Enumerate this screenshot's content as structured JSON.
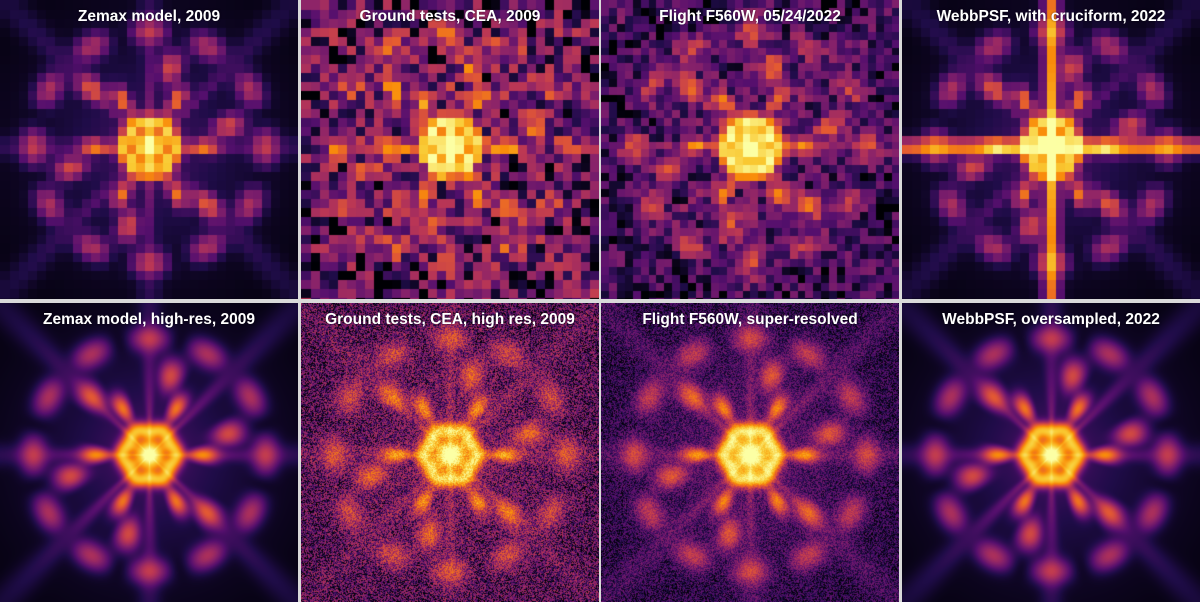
{
  "panels": [
    {
      "title": "Zemax model, 2009",
      "style": "pixel",
      "cells": 33,
      "noise": 0.0,
      "cross": false,
      "spot": "model"
    },
    {
      "title": "Ground tests, CEA, 2009",
      "style": "pixel",
      "cells": 33,
      "noise": 0.55,
      "cross": false,
      "spot": "ground"
    },
    {
      "title": "Flight F560W, 05/24/2022",
      "style": "pixel",
      "cells": 38,
      "noise": 0.3,
      "cross": false,
      "spot": "flight"
    },
    {
      "title": "WebbPSF, with cruciform, 2022",
      "style": "pixel",
      "cells": 33,
      "noise": 0.0,
      "cross": true,
      "spot": "model"
    },
    {
      "title": "Zemax model, high-res, 2009",
      "style": "smooth",
      "cells": 0,
      "noise": 0.0,
      "cross": false,
      "spot": "model"
    },
    {
      "title": "Ground tests, CEA, high res, 2009",
      "style": "smooth",
      "cells": 0,
      "noise": 0.5,
      "cross": false,
      "spot": "ground"
    },
    {
      "title": "Flight F560W, super-resolved",
      "style": "smooth",
      "cells": 0,
      "noise": 0.25,
      "cross": false,
      "spot": "flight"
    },
    {
      "title": "WebbPSF, oversampled, 2022",
      "style": "smooth",
      "cells": 0,
      "noise": 0.0,
      "cross": false,
      "spot": "model"
    }
  ],
  "colormap": "inferno"
}
